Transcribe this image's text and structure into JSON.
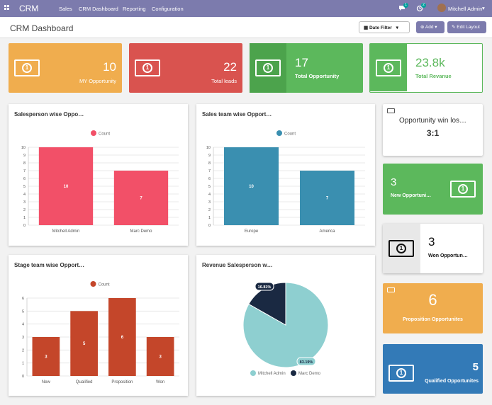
{
  "topbar": {
    "brand": "CRM",
    "menu": [
      "Sales",
      "CRM Dashboard",
      "Reporting",
      "Configuration"
    ],
    "chat_badge": "1",
    "activity_badge": "2",
    "user": "Mitchell Admin"
  },
  "subbar": {
    "title": "CRM Dashboard",
    "date_filter": "Date Filter",
    "add": "Add",
    "edit_layout": "Edit Layout"
  },
  "kpis": [
    {
      "value": "10",
      "label": "MY Opportunity",
      "color": "#f0ad4e"
    },
    {
      "value": "22",
      "label": "Total leads",
      "color": "#d9534f"
    },
    {
      "value": "17",
      "label": "Total Opportunity",
      "color": "#5cb85c"
    },
    {
      "value": "23.8k",
      "label": "Total Revanue",
      "color": "#5cb85c"
    }
  ],
  "side": {
    "win_loss": {
      "title": "Opportunity win los…",
      "value": "3:1"
    },
    "new_opps": {
      "value": "3",
      "label": "New Opportuni…"
    },
    "won_opps": {
      "value": "3",
      "label": "Won Opportun…"
    },
    "proposition": {
      "value": "6",
      "label": "Proposition Opportunites"
    },
    "qualified": {
      "value": "5",
      "label": "Qualified Opportunites"
    }
  },
  "chart_data": [
    {
      "type": "bar",
      "title": "Salesperson wise Oppo…",
      "legend": "Count",
      "color": "#f25068",
      "categories": [
        "Mitchell Admin",
        "Marc Demo"
      ],
      "values": [
        10,
        7
      ],
      "ylim": [
        0,
        10
      ],
      "ticks": [
        0,
        1,
        2,
        3,
        4,
        5,
        6,
        7,
        8,
        9,
        10
      ]
    },
    {
      "type": "bar",
      "title": "Sales team wise Opport…",
      "legend": "Count",
      "color": "#3a8fb0",
      "categories": [
        "Europe",
        "America"
      ],
      "values": [
        10,
        7
      ],
      "ylim": [
        0,
        10
      ],
      "ticks": [
        0,
        1,
        2,
        3,
        4,
        5,
        6,
        7,
        8,
        9,
        10
      ]
    },
    {
      "type": "bar",
      "title": "Stage team wise Opport…",
      "legend": "Count",
      "color": "#c4462a",
      "categories": [
        "New",
        "Qualified",
        "Proposition",
        "Won"
      ],
      "values": [
        3,
        5,
        6,
        3
      ],
      "ylim": [
        0,
        6
      ],
      "ticks": [
        0,
        1,
        2,
        3,
        4,
        5,
        6
      ]
    },
    {
      "type": "pie",
      "title": "Revenue Salesperson w…",
      "labels": [
        "Mitchell Admin",
        "Marc Demo"
      ],
      "values": [
        83.19,
        16.81
      ],
      "data_labels": [
        "83.19%",
        "16.81%"
      ],
      "colors": [
        "#8ecfd0",
        "#1a2942"
      ]
    }
  ]
}
